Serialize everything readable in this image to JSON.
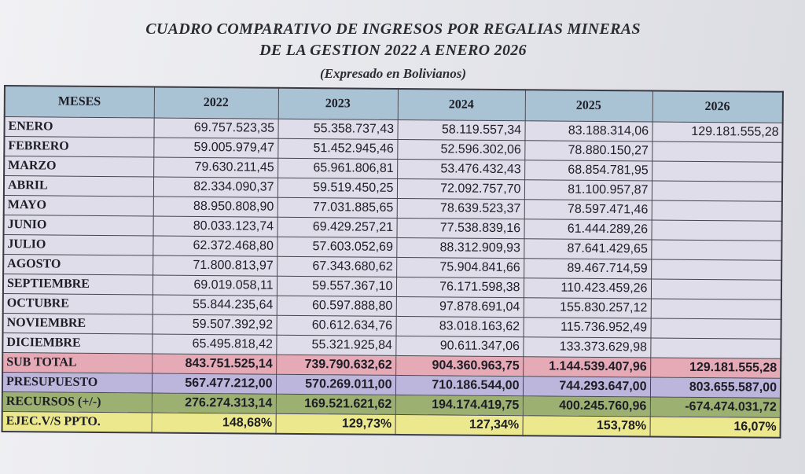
{
  "title_line1": "CUADRO COMPARATIVO DE INGRESOS POR REGALIAS MINERAS",
  "title_line2": "DE LA GESTION 2022 A ENERO 2026",
  "subtitle": "(Expresado en Bolivianos)",
  "table": {
    "headers": [
      "MESES",
      "2022",
      "2023",
      "2024",
      "2025",
      "2026"
    ],
    "months": [
      {
        "name": "ENERO",
        "values": [
          "69.757.523,35",
          "55.358.737,43",
          "58.119.557,34",
          "83.188.314,06",
          "129.181.555,28"
        ]
      },
      {
        "name": "FEBRERO",
        "values": [
          "59.005.979,47",
          "51.452.945,46",
          "52.596.302,06",
          "78.880.150,27",
          ""
        ]
      },
      {
        "name": "MARZO",
        "values": [
          "79.630.211,45",
          "65.961.806,81",
          "53.476.432,43",
          "68.854.781,95",
          ""
        ]
      },
      {
        "name": "ABRIL",
        "values": [
          "82.334.090,37",
          "59.519.450,25",
          "72.092.757,70",
          "81.100.957,87",
          ""
        ]
      },
      {
        "name": "MAYO",
        "values": [
          "88.950.808,90",
          "77.031.885,65",
          "78.639.523,37",
          "78.597.471,46",
          ""
        ]
      },
      {
        "name": "JUNIO",
        "values": [
          "80.033.123,74",
          "69.429.257,21",
          "77.538.839,16",
          "61.444.289,26",
          ""
        ]
      },
      {
        "name": "JULIO",
        "values": [
          "62.372.468,80",
          "57.603.052,69",
          "88.312.909,93",
          "87.641.429,65",
          ""
        ]
      },
      {
        "name": "AGOSTO",
        "values": [
          "71.800.813,97",
          "67.343.680,62",
          "75.904.841,66",
          "89.467.714,59",
          ""
        ]
      },
      {
        "name": "SEPTIEMBRE",
        "values": [
          "69.019.058,11",
          "59.557.367,10",
          "76.171.598,38",
          "110.423.459,26",
          ""
        ]
      },
      {
        "name": "OCTUBRE",
        "values": [
          "55.844.235,64",
          "60.597.888,80",
          "97.878.691,04",
          "155.830.257,12",
          ""
        ]
      },
      {
        "name": "NOVIEMBRE",
        "values": [
          "59.507.392,92",
          "60.612.634,76",
          "83.018.163,62",
          "115.736.952,49",
          ""
        ]
      },
      {
        "name": "DICIEMBRE",
        "values": [
          "65.495.818,42",
          "55.321.925,84",
          "90.611.347,06",
          "133.373.629,98",
          ""
        ]
      }
    ],
    "summary": [
      {
        "key": "sub",
        "name": "SUB TOTAL",
        "values": [
          "843.751.525,14",
          "739.790.632,62",
          "904.360.963,75",
          "1.144.539.407,96",
          "129.181.555,28"
        ]
      },
      {
        "key": "pre",
        "name": "PRESUPUESTO",
        "values": [
          "567.477.212,00",
          "570.269.011,00",
          "710.186.544,00",
          "744.293.647,00",
          "803.655.587,00"
        ]
      },
      {
        "key": "rec",
        "name": "RECURSOS (+/-)",
        "values": [
          "276.274.313,14",
          "169.521.621,62",
          "194.174.419,75",
          "400.245.760,96",
          "-674.474.031,72"
        ]
      },
      {
        "key": "eje",
        "name": "EJEC.V/S PPTO.",
        "values": [
          "148,68%",
          "129,73%",
          "127,34%",
          "153,78%",
          "16,07%"
        ]
      }
    ]
  }
}
